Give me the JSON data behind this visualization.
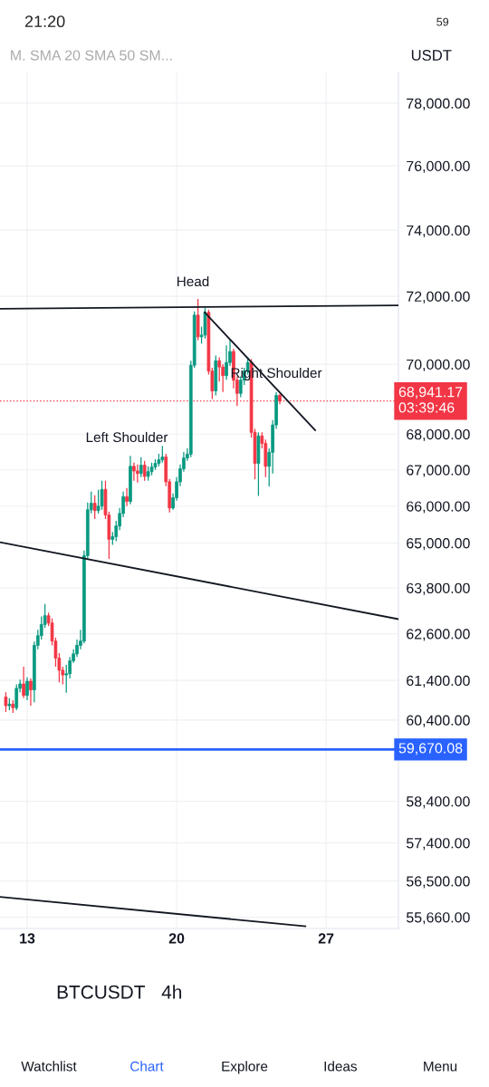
{
  "chart_data": {
    "type": "candlestick",
    "title": "BTCUSDT",
    "subtitle": "4h",
    "log": true,
    "series": [
      {
        "colors": [
          "#f23645",
          "#089981",
          "#f23645",
          "#089981",
          "#089981",
          "#f23645",
          "#089981",
          "#f23645",
          "#089981",
          "#089981",
          "#089981",
          "#089981",
          "#f23645",
          "#f23645",
          "#f23645",
          "#f23645",
          "#f23645",
          "#089981",
          "#089981",
          "#089981",
          "#089981",
          "#089981",
          "#089981",
          "#089981",
          "#089981",
          "#f23645",
          "#089981",
          "#089981",
          "#f23645",
          "#f23645",
          "#089981",
          "#089981",
          "#089981",
          "#089981",
          "#f23645",
          "#089981",
          "#f23645",
          "#f23645",
          "#089981",
          "#f23645",
          "#089981",
          "#089981",
          "#089981",
          "#089981",
          "#089981",
          "#f23645",
          "#f23645",
          "#089981",
          "#089981",
          "#089981",
          "#089981",
          "#089981",
          "#089981",
          "#089981",
          "#f23645",
          "#089981",
          "#089981",
          "#f23645",
          "#f23645",
          "#089981",
          "#f23645",
          "#f23645",
          "#089981",
          "#089981",
          "#f23645",
          "#f23645",
          "#089981",
          "#089981",
          "#089981",
          "#f23645",
          "#f23645",
          "#089981",
          "#f23645",
          "#f23645",
          "#089981",
          "#089981",
          "#089981",
          "#f23645"
        ],
        "x": [
          12,
          12.167,
          12.333,
          12.5,
          12.667,
          12.833,
          13,
          13.167,
          13.333,
          13.5,
          13.667,
          13.833,
          14,
          14.167,
          14.333,
          14.5,
          14.667,
          14.833,
          15,
          15.167,
          15.333,
          15.5,
          15.667,
          15.833,
          16,
          16.167,
          16.333,
          16.5,
          16.667,
          16.833,
          17,
          17.167,
          17.333,
          17.5,
          17.667,
          17.833,
          18,
          18.167,
          18.333,
          18.5,
          18.667,
          18.833,
          19,
          19.167,
          19.333,
          19.5,
          19.667,
          19.833,
          20,
          20.167,
          20.333,
          20.5,
          20.667,
          20.833,
          21,
          21.167,
          21.333,
          21.5,
          21.667,
          21.833,
          22,
          22.167,
          22.333,
          22.5,
          22.667,
          22.833,
          23,
          23.167,
          23.333,
          23.5,
          23.667,
          23.833,
          24,
          24.167,
          24.333,
          24.5,
          24.667,
          24.833
        ],
        "ohlc": [
          [
            60980,
            61100,
            60600,
            60760
          ],
          [
            60760,
            60950,
            60650,
            60800
          ],
          [
            60800,
            60900,
            60580,
            60710
          ],
          [
            60710,
            61300,
            60650,
            61200
          ],
          [
            61200,
            61420,
            61100,
            61310
          ],
          [
            61310,
            61750,
            60950,
            61020
          ],
          [
            61020,
            61480,
            60900,
            61380
          ],
          [
            61380,
            61450,
            60760,
            61160
          ],
          [
            61160,
            62400,
            60850,
            62300
          ],
          [
            62300,
            62700,
            62200,
            62550
          ],
          [
            62550,
            63050,
            62450,
            62840
          ],
          [
            62840,
            63380,
            62750,
            63070
          ],
          [
            63070,
            63150,
            62800,
            62880
          ],
          [
            62880,
            63000,
            62300,
            62410
          ],
          [
            62410,
            62500,
            61750,
            61970
          ],
          [
            61970,
            62100,
            61350,
            61660
          ],
          [
            61660,
            61750,
            61300,
            61540
          ],
          [
            61540,
            61800,
            61090,
            61570
          ],
          [
            61570,
            62000,
            61450,
            61900
          ],
          [
            61900,
            62200,
            61850,
            62080
          ],
          [
            62080,
            62450,
            62000,
            62300
          ],
          [
            62300,
            62700,
            62200,
            62410
          ],
          [
            62410,
            64800,
            62350,
            64660
          ],
          [
            64660,
            66100,
            64550,
            65900
          ],
          [
            65900,
            66400,
            65800,
            66080
          ],
          [
            66080,
            66300,
            65650,
            65880
          ],
          [
            65880,
            66450,
            65800,
            66000
          ],
          [
            66000,
            66700,
            65900,
            66460
          ],
          [
            66460,
            66700,
            65650,
            65760
          ],
          [
            65760,
            65850,
            64570,
            65100
          ],
          [
            65100,
            65300,
            64950,
            65170
          ],
          [
            65170,
            65600,
            65050,
            65460
          ],
          [
            65460,
            65950,
            65350,
            65800
          ],
          [
            65800,
            66400,
            65700,
            66260
          ],
          [
            66260,
            66500,
            66000,
            66130
          ],
          [
            66130,
            67390,
            66050,
            67100
          ],
          [
            67100,
            67200,
            66700,
            66970
          ],
          [
            66970,
            67150,
            66650,
            66900
          ],
          [
            66900,
            67350,
            66800,
            67130
          ],
          [
            67130,
            67250,
            66700,
            66820
          ],
          [
            66820,
            67100,
            66700,
            66950
          ],
          [
            66950,
            67200,
            66850,
            67080
          ],
          [
            67080,
            67300,
            67000,
            67180
          ],
          [
            67180,
            67450,
            67100,
            67280
          ],
          [
            67280,
            67670,
            67200,
            67360
          ],
          [
            67360,
            67450,
            66550,
            66670
          ],
          [
            66670,
            66750,
            65830,
            65950
          ],
          [
            65950,
            66350,
            65900,
            66230
          ],
          [
            66230,
            66800,
            66150,
            66670
          ],
          [
            66670,
            67150,
            66550,
            67030
          ],
          [
            67030,
            67500,
            66950,
            67330
          ],
          [
            67330,
            67600,
            67250,
            67440
          ],
          [
            67440,
            70100,
            67350,
            69970
          ],
          [
            69970,
            71550,
            69900,
            71440
          ],
          [
            71440,
            71920,
            70700,
            70800
          ],
          [
            70800,
            71100,
            70600,
            70850
          ],
          [
            70850,
            71650,
            70750,
            71520
          ],
          [
            71520,
            71600,
            69700,
            69800
          ],
          [
            69800,
            69900,
            69000,
            69230
          ],
          [
            69230,
            70250,
            69100,
            70100
          ],
          [
            70100,
            70200,
            69500,
            69920
          ],
          [
            69920,
            70000,
            69200,
            69670
          ],
          [
            69670,
            70550,
            69550,
            70050
          ],
          [
            70050,
            70700,
            69950,
            70370
          ],
          [
            70370,
            70450,
            69300,
            69540
          ],
          [
            69540,
            69650,
            68800,
            69160
          ],
          [
            69160,
            69650,
            69050,
            69540
          ],
          [
            69540,
            69900,
            69400,
            69800
          ],
          [
            69800,
            70200,
            69700,
            70050
          ],
          [
            70050,
            70150,
            67900,
            68050
          ],
          [
            68050,
            68150,
            66740,
            67180
          ],
          [
            67180,
            68050,
            66280,
            67950
          ],
          [
            67950,
            68050,
            67600,
            67740
          ],
          [
            67740,
            67850,
            66800,
            67100
          ],
          [
            67100,
            67600,
            66540,
            67490
          ],
          [
            67490,
            68400,
            66900,
            68260
          ],
          [
            68260,
            69200,
            68150,
            69100
          ],
          [
            69100,
            69150,
            68850,
            68940
          ]
        ]
      },
      {
        "type": "line",
        "color": "#131722",
        "x": [
          11.727,
          30.39
        ],
        "values": [
          71630,
          71730
        ]
      },
      {
        "type": "line",
        "color": "#131722",
        "x": [
          11.727,
          30.39
        ],
        "values": [
          65020,
          62980
        ]
      },
      {
        "type": "line",
        "color": "#131722",
        "x": [
          11.727,
          26.03
        ],
        "values": [
          56130,
          55450
        ]
      },
      {
        "type": "line",
        "color": "#131722",
        "x": [
          21.316,
          26.49
        ],
        "values": [
          71520,
          68110
        ]
      }
    ],
    "xlim": [
      11.727,
      30.39
    ],
    "xticks": [
      13,
      20,
      27
    ],
    "ylim": [
      55400,
      79000
    ],
    "yticks": [
      {
        "value": 78000,
        "label": "78,000.00"
      },
      {
        "value": 76000,
        "label": "76,000.00"
      },
      {
        "value": 74000,
        "label": "74,000.00"
      },
      {
        "value": 72000,
        "label": "72,000.00"
      },
      {
        "value": 70000,
        "label": "70,000.00"
      },
      {
        "value": 68000,
        "label": "68,000.00"
      },
      {
        "value": 67000,
        "label": "67,000.00"
      },
      {
        "value": 66000,
        "label": "66,000.00"
      },
      {
        "value": 65000,
        "label": "65,000.00"
      },
      {
        "value": 63800,
        "label": "63,800.00"
      },
      {
        "value": 62600,
        "label": "62,600.00"
      },
      {
        "value": 61400,
        "label": "61,400.00"
      },
      {
        "value": 60400,
        "label": "60,400.00"
      },
      {
        "value": 58400,
        "label": "58,400.00"
      },
      {
        "value": 57400,
        "label": "57,400.00"
      },
      {
        "value": 56500,
        "label": "56,500.00"
      },
      {
        "value": 55660,
        "label": "55,660.00"
      }
    ],
    "grid": true,
    "ref_lines": [
      {
        "axis": "y",
        "value": 68941.17,
        "label": "68,941.17\n03:39:46",
        "color": "#f23645",
        "line_style": "dotted"
      },
      {
        "axis": "y",
        "value": 59670.08,
        "label": "59,670.08",
        "color": "#2962ff",
        "line_style": "solid"
      }
    ],
    "annotations": [
      "Head",
      "Left Shoulder",
      "Right Shoulder",
      "21:20",
      "59",
      "M. SMA 20 SMA 50 SM...",
      "USDT",
      "Watchlist",
      "Chart",
      "Explore",
      "Ideas",
      "Menu"
    ]
  }
}
